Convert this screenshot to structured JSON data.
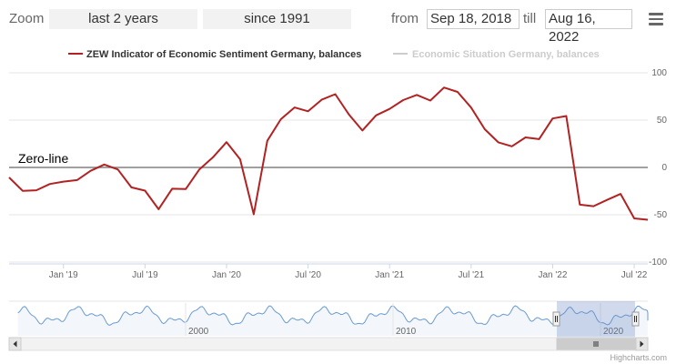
{
  "toolbar": {
    "zoom_label": "Zoom",
    "range_buttons": [
      "last 2 years",
      "since 1991"
    ],
    "from_label": "from",
    "from_value": "Sep 18, 2018",
    "till_label": "till",
    "till_value": "Aug 16, 2022",
    "menu_icon": "hamburger-menu-icon"
  },
  "chart_data": {
    "type": "line",
    "title": "",
    "xlabel": "",
    "ylabel": "",
    "ylim": [
      -100,
      100
    ],
    "yticks": [
      "100",
      "50",
      "0",
      "-50",
      "-100"
    ],
    "xticks": [
      "Jan '19",
      "Jul '19",
      "Jan '20",
      "Jul '20",
      "Jan '21",
      "Jul '21",
      "Jan '22",
      "Jul '22"
    ],
    "legend_position": "top-center",
    "grid": true,
    "annotation": "Zero-line",
    "series": [
      {
        "name": "ZEW Indicator of Economic Sentiment Germany, balances",
        "color": "#b22222",
        "visible": true,
        "x": [
          "2018-09",
          "2018-10",
          "2018-11",
          "2018-12",
          "2019-01",
          "2019-02",
          "2019-03",
          "2019-04",
          "2019-05",
          "2019-06",
          "2019-07",
          "2019-08",
          "2019-09",
          "2019-10",
          "2019-11",
          "2019-12",
          "2020-01",
          "2020-02",
          "2020-03",
          "2020-04",
          "2020-05",
          "2020-06",
          "2020-07",
          "2020-08",
          "2020-09",
          "2020-10",
          "2020-11",
          "2020-12",
          "2021-01",
          "2021-02",
          "2021-03",
          "2021-04",
          "2021-05",
          "2021-06",
          "2021-07",
          "2021-08",
          "2021-09",
          "2021-10",
          "2021-11",
          "2021-12",
          "2022-01",
          "2022-02",
          "2022-03",
          "2022-04",
          "2022-05",
          "2022-06",
          "2022-07",
          "2022-08"
        ],
        "values": [
          -10.6,
          -24.7,
          -24.1,
          -17.5,
          -15.0,
          -13.4,
          -3.6,
          3.1,
          -2.1,
          -21.1,
          -24.5,
          -44.1,
          -22.5,
          -22.8,
          -2.1,
          10.7,
          26.7,
          8.7,
          -49.5,
          28.2,
          51.0,
          63.4,
          59.3,
          71.5,
          77.4,
          56.1,
          39.0,
          55.0,
          61.8,
          71.2,
          76.6,
          70.7,
          84.4,
          79.8,
          63.3,
          40.4,
          26.5,
          22.3,
          31.7,
          29.9,
          51.7,
          54.3,
          -39.3,
          -41.0,
          -34.3,
          -28.0,
          -53.8,
          -55.3
        ]
      },
      {
        "name": "Economic Situation Germany, balances",
        "color": "#cccccc",
        "visible": false
      }
    ],
    "navigator": {
      "series_color": "#6a9bd1",
      "xticks": [
        "2000",
        "2010",
        "2020"
      ]
    }
  },
  "credits": "Highcharts.com"
}
